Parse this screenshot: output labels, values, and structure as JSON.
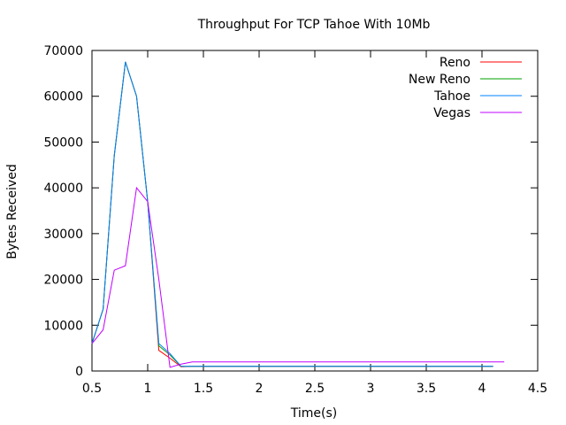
{
  "chart_data": {
    "type": "line",
    "title": "Throughput For TCP Tahoe With 10Mb",
    "xlabel": "Time(s)",
    "ylabel": "Bytes Received",
    "xlim": [
      0.5,
      4.5
    ],
    "ylim": [
      0,
      70000
    ],
    "xticks": [
      0.5,
      1,
      1.5,
      2,
      2.5,
      3,
      3.5,
      4,
      4.5
    ],
    "xtick_labels": [
      "0.5",
      "1",
      "1.5",
      "2",
      "2.5",
      "3",
      "3.5",
      "4",
      "4.5"
    ],
    "yticks": [
      0,
      10000,
      20000,
      30000,
      40000,
      50000,
      60000,
      70000
    ],
    "ytick_labels": [
      "0",
      "10000",
      "20000",
      "30000",
      "40000",
      "50000",
      "60000",
      "70000"
    ],
    "grid": false,
    "legend_position": "top-right",
    "series": [
      {
        "name": "Reno",
        "color": "#ff0000",
        "x": [
          0.5,
          0.6,
          0.7,
          0.8,
          0.9,
          1.0,
          1.1,
          1.2,
          1.3,
          1.4,
          1.5,
          2.0,
          2.5,
          3.0,
          3.5,
          4.0,
          4.1
        ],
        "y": [
          6000,
          13500,
          47000,
          67500,
          60000,
          37000,
          4500,
          2800,
          900,
          1000,
          1000,
          1000,
          1000,
          1000,
          1000,
          1000,
          1000
        ]
      },
      {
        "name": "New Reno",
        "color": "#00a000",
        "x": [
          0.5,
          0.6,
          0.7,
          0.8,
          0.9,
          1.0,
          1.1,
          1.2,
          1.3,
          1.4,
          1.5,
          2.0,
          2.5,
          3.0,
          3.5,
          4.0,
          4.1
        ],
        "y": [
          6000,
          13500,
          47000,
          67500,
          60000,
          37000,
          5500,
          3500,
          1000,
          1000,
          1000,
          1000,
          1000,
          1000,
          1000,
          1000,
          1000
        ]
      },
      {
        "name": "Tahoe",
        "color": "#0080ff",
        "x": [
          0.5,
          0.6,
          0.7,
          0.8,
          0.9,
          1.0,
          1.1,
          1.2,
          1.3,
          1.4,
          1.5,
          2.0,
          2.5,
          3.0,
          3.5,
          4.0,
          4.1
        ],
        "y": [
          6000,
          13500,
          47000,
          67500,
          60000,
          37000,
          6000,
          3800,
          1000,
          1000,
          1000,
          1000,
          1000,
          1000,
          1000,
          1000,
          1000
        ]
      },
      {
        "name": "Vegas",
        "color": "#c000ff",
        "x": [
          0.5,
          0.6,
          0.7,
          0.8,
          0.9,
          1.0,
          1.1,
          1.2,
          1.3,
          1.4,
          1.5,
          2.0,
          2.5,
          3.0,
          3.5,
          4.0,
          4.2
        ],
        "y": [
          6000,
          9000,
          22000,
          23000,
          40000,
          37000,
          20000,
          800,
          1500,
          2000,
          2000,
          2000,
          2000,
          2000,
          2000,
          2000,
          2000
        ]
      }
    ]
  }
}
